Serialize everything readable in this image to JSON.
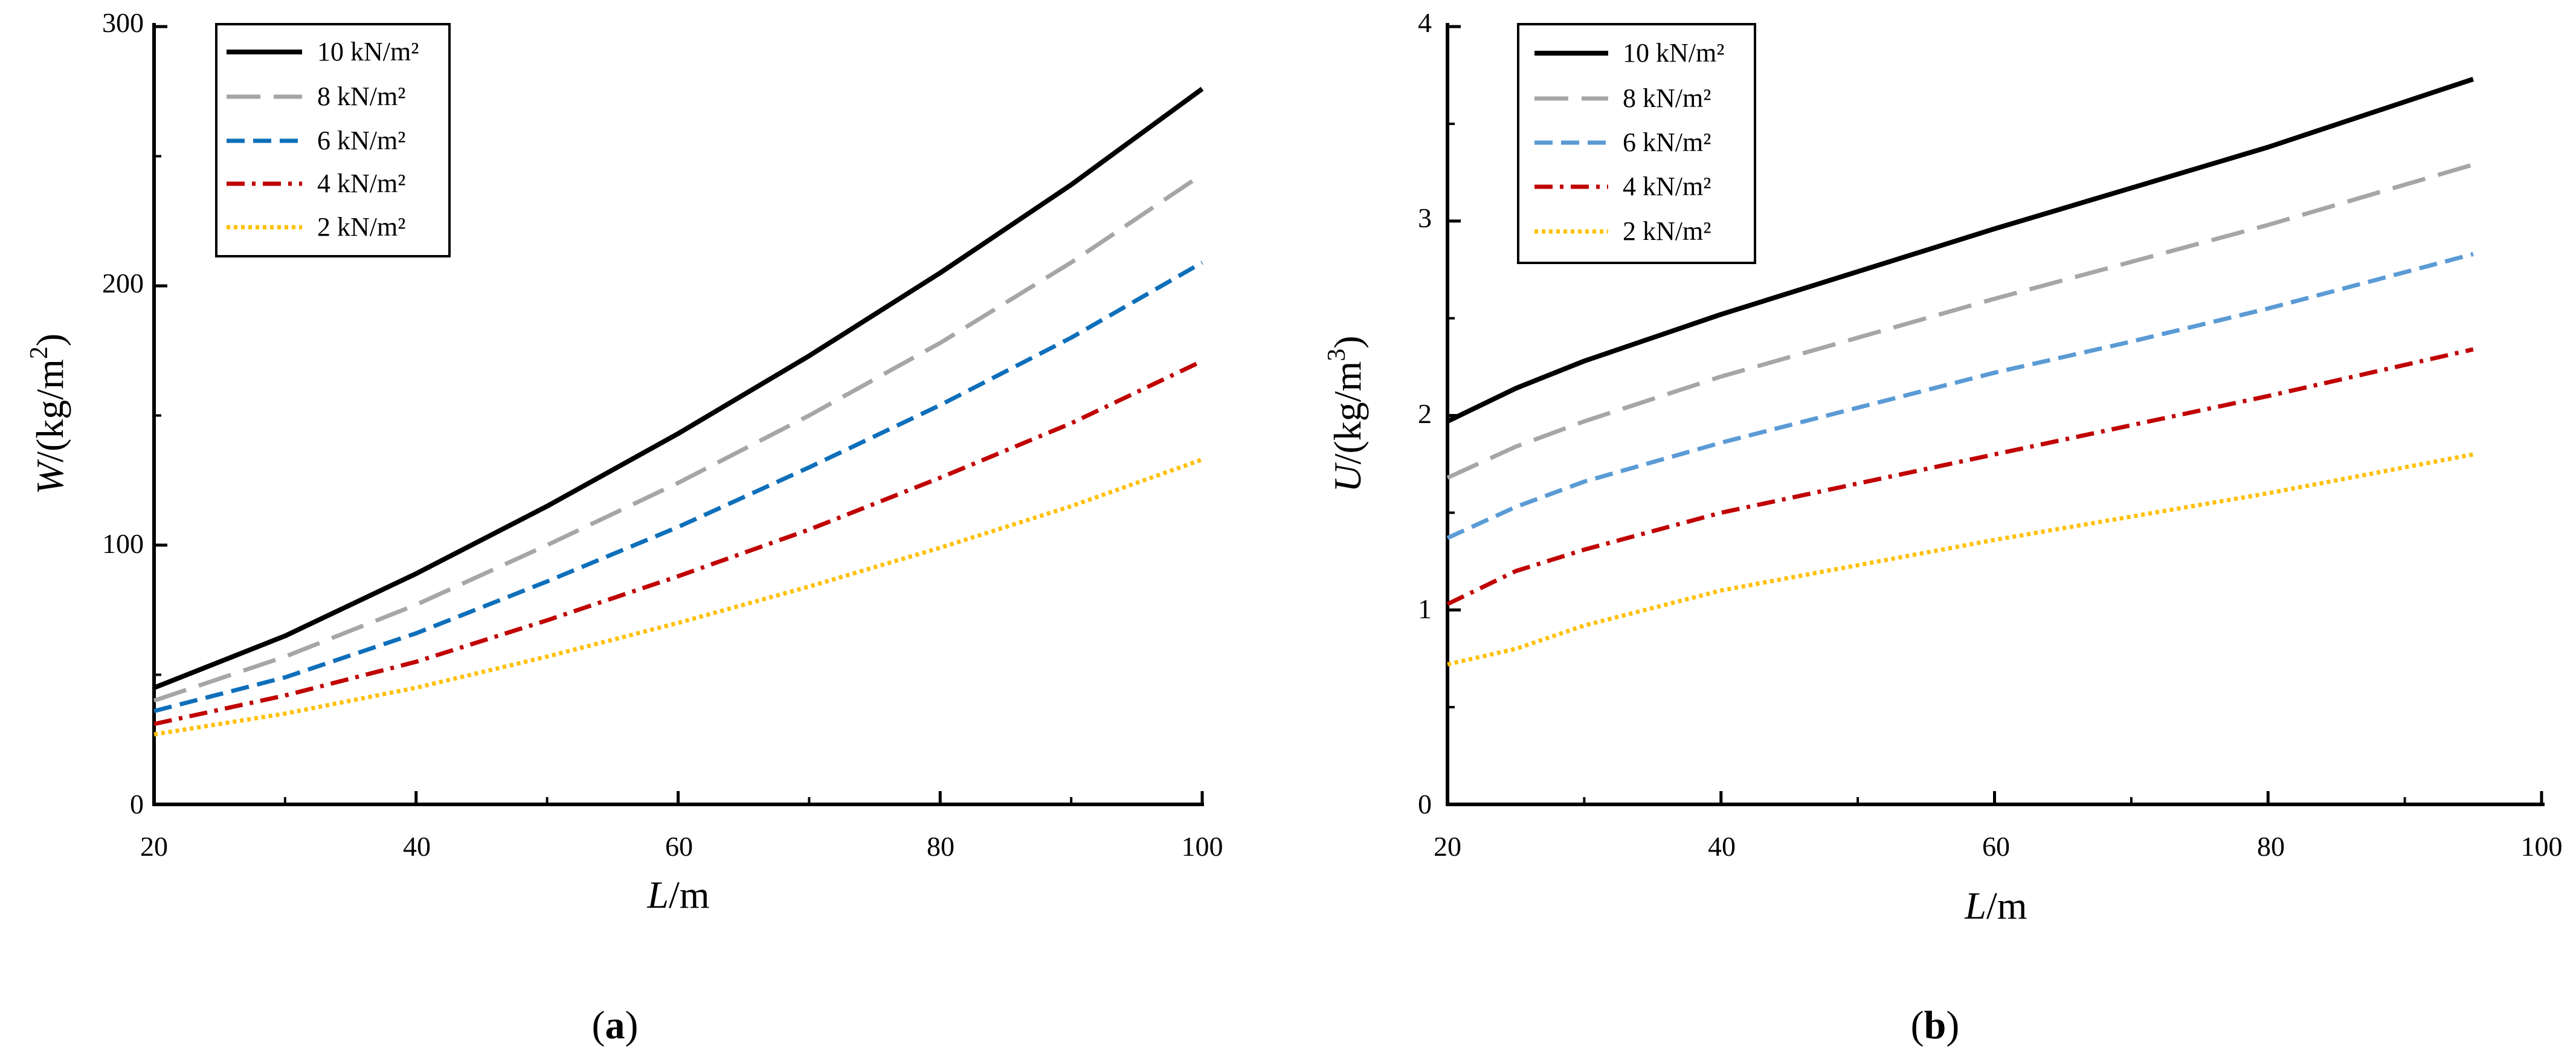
{
  "chart_data": [
    {
      "type": "line",
      "panel_label": "(a)",
      "panel_letter": "a",
      "xlabel": "L/m",
      "xlabel_var": "L",
      "xlabel_unit": "/m",
      "ylabel": "W/(kg/m2)",
      "ylabel_var": "W",
      "ylabel_unit": "/(kg/m",
      "ylabel_exp": "2",
      "ylabel_close": ")",
      "xlim": [
        20,
        100
      ],
      "ylim": [
        0,
        300
      ],
      "xticks": [
        20,
        40,
        60,
        80,
        100
      ],
      "xtick_labels": [
        "20",
        "40",
        "60",
        "80",
        "100"
      ],
      "yticks": [
        0,
        100,
        200,
        300
      ],
      "ytick_labels": [
        "0",
        "100",
        "200",
        "300"
      ],
      "x": [
        20,
        30,
        40,
        50,
        60,
        70,
        80,
        90,
        100
      ],
      "series": [
        {
          "name": "10 kN/m²",
          "color": "#000000",
          "style": "solid",
          "values": [
            45,
            65,
            89,
            115,
            143,
            173,
            205,
            239,
            276
          ]
        },
        {
          "name": "8 kN/m²",
          "color": "#a6a6a6",
          "style": "long-dash",
          "values": [
            40,
            57,
            77,
            100,
            124,
            150,
            178,
            209,
            243
          ]
        },
        {
          "name": "6 kN/m²",
          "color": "#0e6fba",
          "style": "dash",
          "values": [
            36,
            49,
            66,
            86,
            107,
            130,
            154,
            180,
            209
          ]
        },
        {
          "name": "4 kN/m²",
          "color": "#c00000",
          "style": "dash-dot",
          "values": [
            31,
            42,
            55,
            71,
            88,
            106,
            126,
            147,
            171
          ]
        },
        {
          "name": "2 kN/m²",
          "color": "#ffc000",
          "style": "dot",
          "values": [
            27,
            35,
            45,
            57,
            70,
            84,
            99,
            115,
            133
          ]
        }
      ],
      "legend": [
        "10 kN/m²",
        "8 kN/m²",
        "6 kN/m²",
        "4 kN/m²",
        "2 kN/m²"
      ],
      "legend_position": "top-left"
    },
    {
      "type": "line",
      "panel_label": "(b)",
      "panel_letter": "b",
      "xlabel": "L/m",
      "xlabel_var": "L",
      "xlabel_unit": "/m",
      "ylabel": "U/(kg/m3)",
      "ylabel_var": "U",
      "ylabel_unit": "/(kg/m",
      "ylabel_exp": "3",
      "ylabel_close": ")",
      "xlim": [
        20,
        100
      ],
      "ylim": [
        0,
        4
      ],
      "xticks": [
        20,
        40,
        60,
        80,
        100
      ],
      "xtick_labels": [
        "20",
        "40",
        "60",
        "80",
        "100"
      ],
      "yticks": [
        0,
        1,
        2,
        3,
        4
      ],
      "ytick_labels": [
        "0",
        "1",
        "2",
        "3",
        "4"
      ],
      "x": [
        20,
        25,
        30,
        40,
        50,
        60,
        70,
        80,
        95
      ],
      "series": [
        {
          "name": "10 kN/m²",
          "color": "#000000",
          "style": "solid",
          "values": [
            1.97,
            2.14,
            2.28,
            2.52,
            2.74,
            2.96,
            3.17,
            3.38,
            3.73
          ]
        },
        {
          "name": "8 kN/m²",
          "color": "#a6a6a6",
          "style": "long-dash",
          "values": [
            1.68,
            1.84,
            1.97,
            2.2,
            2.4,
            2.6,
            2.79,
            2.98,
            3.29
          ]
        },
        {
          "name": "6 kN/m²",
          "color": "#5b9bd5",
          "style": "dash",
          "values": [
            1.37,
            1.53,
            1.66,
            1.86,
            2.04,
            2.22,
            2.38,
            2.55,
            2.83
          ]
        },
        {
          "name": "4 kN/m²",
          "color": "#c00000",
          "style": "dash-dot",
          "values": [
            1.03,
            1.2,
            1.31,
            1.5,
            1.65,
            1.8,
            1.95,
            2.1,
            2.34
          ]
        },
        {
          "name": "2 kN/m²",
          "color": "#ffc000",
          "style": "dot",
          "values": [
            0.72,
            0.8,
            0.92,
            1.1,
            1.23,
            1.36,
            1.48,
            1.6,
            1.8
          ]
        }
      ],
      "legend": [
        "10 kN/m²",
        "8 kN/m²",
        "6 kN/m²",
        "4 kN/m²",
        "2 kN/m²"
      ],
      "legend_position": "top-left"
    }
  ]
}
